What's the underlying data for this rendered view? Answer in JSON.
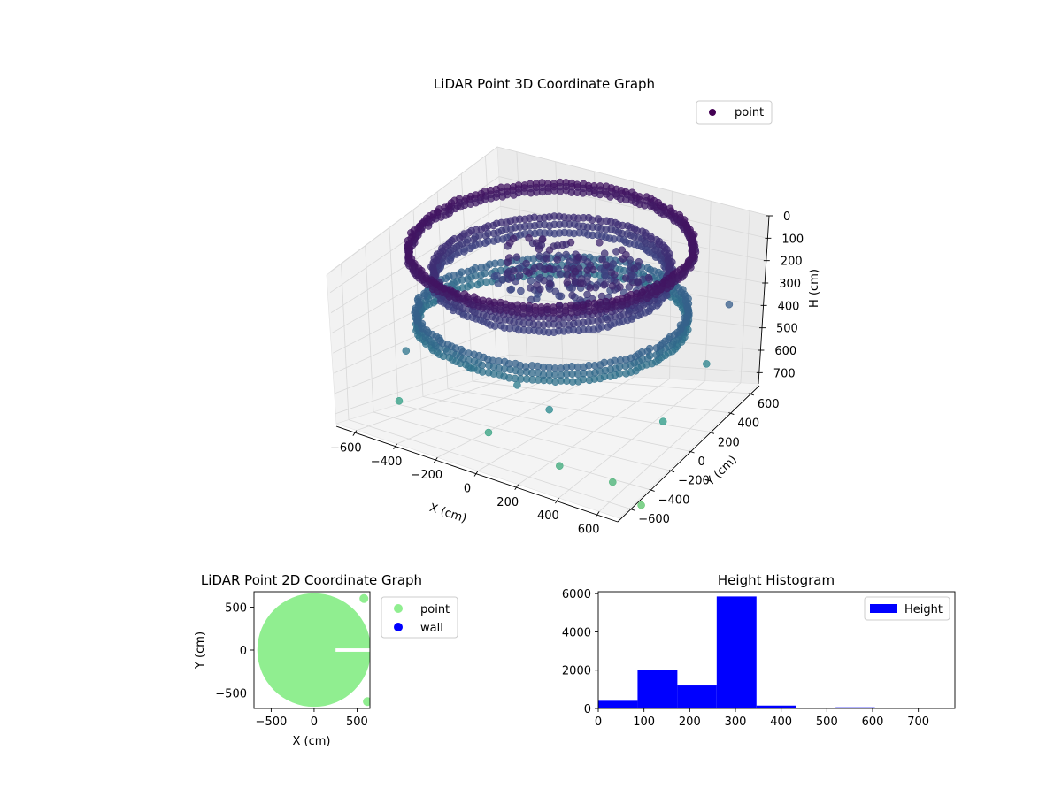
{
  "chart_data": [
    {
      "type": "scatter3d",
      "title": "LiDAR Point 3D Coordinate Graph",
      "xlabel": "X (cm)",
      "ylabel": "Y (cm)",
      "zlabel": "H (cm)",
      "xlim": [
        -700,
        700
      ],
      "ylim": [
        -700,
        700
      ],
      "zlim": [
        0,
        750
      ],
      "z_inverted": true,
      "xticks": [
        -600,
        -400,
        -200,
        0,
        200,
        400,
        600
      ],
      "yticks": [
        -600,
        -400,
        -200,
        0,
        200,
        400,
        600
      ],
      "zticks": [
        0,
        100,
        200,
        300,
        400,
        500,
        600,
        700
      ],
      "colormap": "viridis",
      "legend": {
        "entries": [
          "point"
        ],
        "placement": "top-right",
        "color": "#440154"
      },
      "series": [
        {
          "name": "point",
          "structure": [
            {
              "shape": "ring",
              "radius": 620,
              "h": [
                10,
                40
              ]
            },
            {
              "shape": "ring",
              "radius": 600,
              "h": [
                280,
                340
              ]
            },
            {
              "shape": "ring",
              "radius": 520,
              "h": [
                100,
                160
              ]
            },
            {
              "shape": "cluster",
              "cx": 80,
              "cy": 40,
              "h": [
                60,
                200
              ]
            }
          ],
          "outliers": [
            {
              "x": -420,
              "y": -560,
              "h": 360
            },
            {
              "x": -120,
              "y": -520,
              "h": 380
            },
            {
              "x": 120,
              "y": -540,
              "h": 390
            },
            {
              "x": 300,
              "y": -580,
              "h": 440
            },
            {
              "x": -380,
              "y": -700,
              "h": 540
            },
            {
              "x": 60,
              "y": -700,
              "h": 560
            },
            {
              "x": 420,
              "y": -720,
              "h": 600
            },
            {
              "x": 640,
              "y": -640,
              "h": 640
            },
            {
              "x": 700,
              "y": 360,
              "h": 260
            },
            {
              "x": 720,
              "y": 120,
              "h": 420
            },
            {
              "x": 700,
              "y": -260,
              "h": 520
            },
            {
              "x": 760,
              "y": -600,
              "h": 720
            }
          ]
        }
      ]
    },
    {
      "type": "scatter",
      "title": "LiDAR Point 2D Coordinate Graph",
      "xlabel": "X (cm)",
      "ylabel": "Y (cm)",
      "xlim": [
        -700,
        650
      ],
      "ylim": [
        -680,
        680
      ],
      "xticks": [
        -500,
        0,
        500
      ],
      "yticks": [
        -500,
        0,
        500
      ],
      "legend": {
        "placement": "outside-right"
      },
      "series": [
        {
          "name": "point",
          "color": "#90ee90",
          "shape": "filled-disc",
          "radius": 620,
          "gap": {
            "x_from": 250,
            "x_to": 650,
            "y_from": -20,
            "y_to": 20
          },
          "outliers": [
            {
              "x": 580,
              "y": 600
            },
            {
              "x": 620,
              "y": -600
            }
          ]
        },
        {
          "name": "wall",
          "color": "#0000ff",
          "points": []
        }
      ]
    },
    {
      "type": "histogram",
      "title": "Height Histogram",
      "xlabel": "",
      "ylabel": "",
      "xlim": [
        0,
        780
      ],
      "ylim": [
        0,
        6100
      ],
      "xticks": [
        0,
        100,
        200,
        300,
        400,
        500,
        600,
        700
      ],
      "yticks": [
        0,
        2000,
        4000,
        6000
      ],
      "bin_edges": [
        0,
        86,
        173,
        259,
        346,
        432,
        519,
        605,
        692,
        778
      ],
      "values": [
        400,
        2000,
        1200,
        5850,
        150,
        10,
        60,
        0,
        0
      ],
      "color": "#0000ff",
      "legend": {
        "entries": [
          "Height"
        ],
        "placement": "top-right"
      }
    }
  ]
}
